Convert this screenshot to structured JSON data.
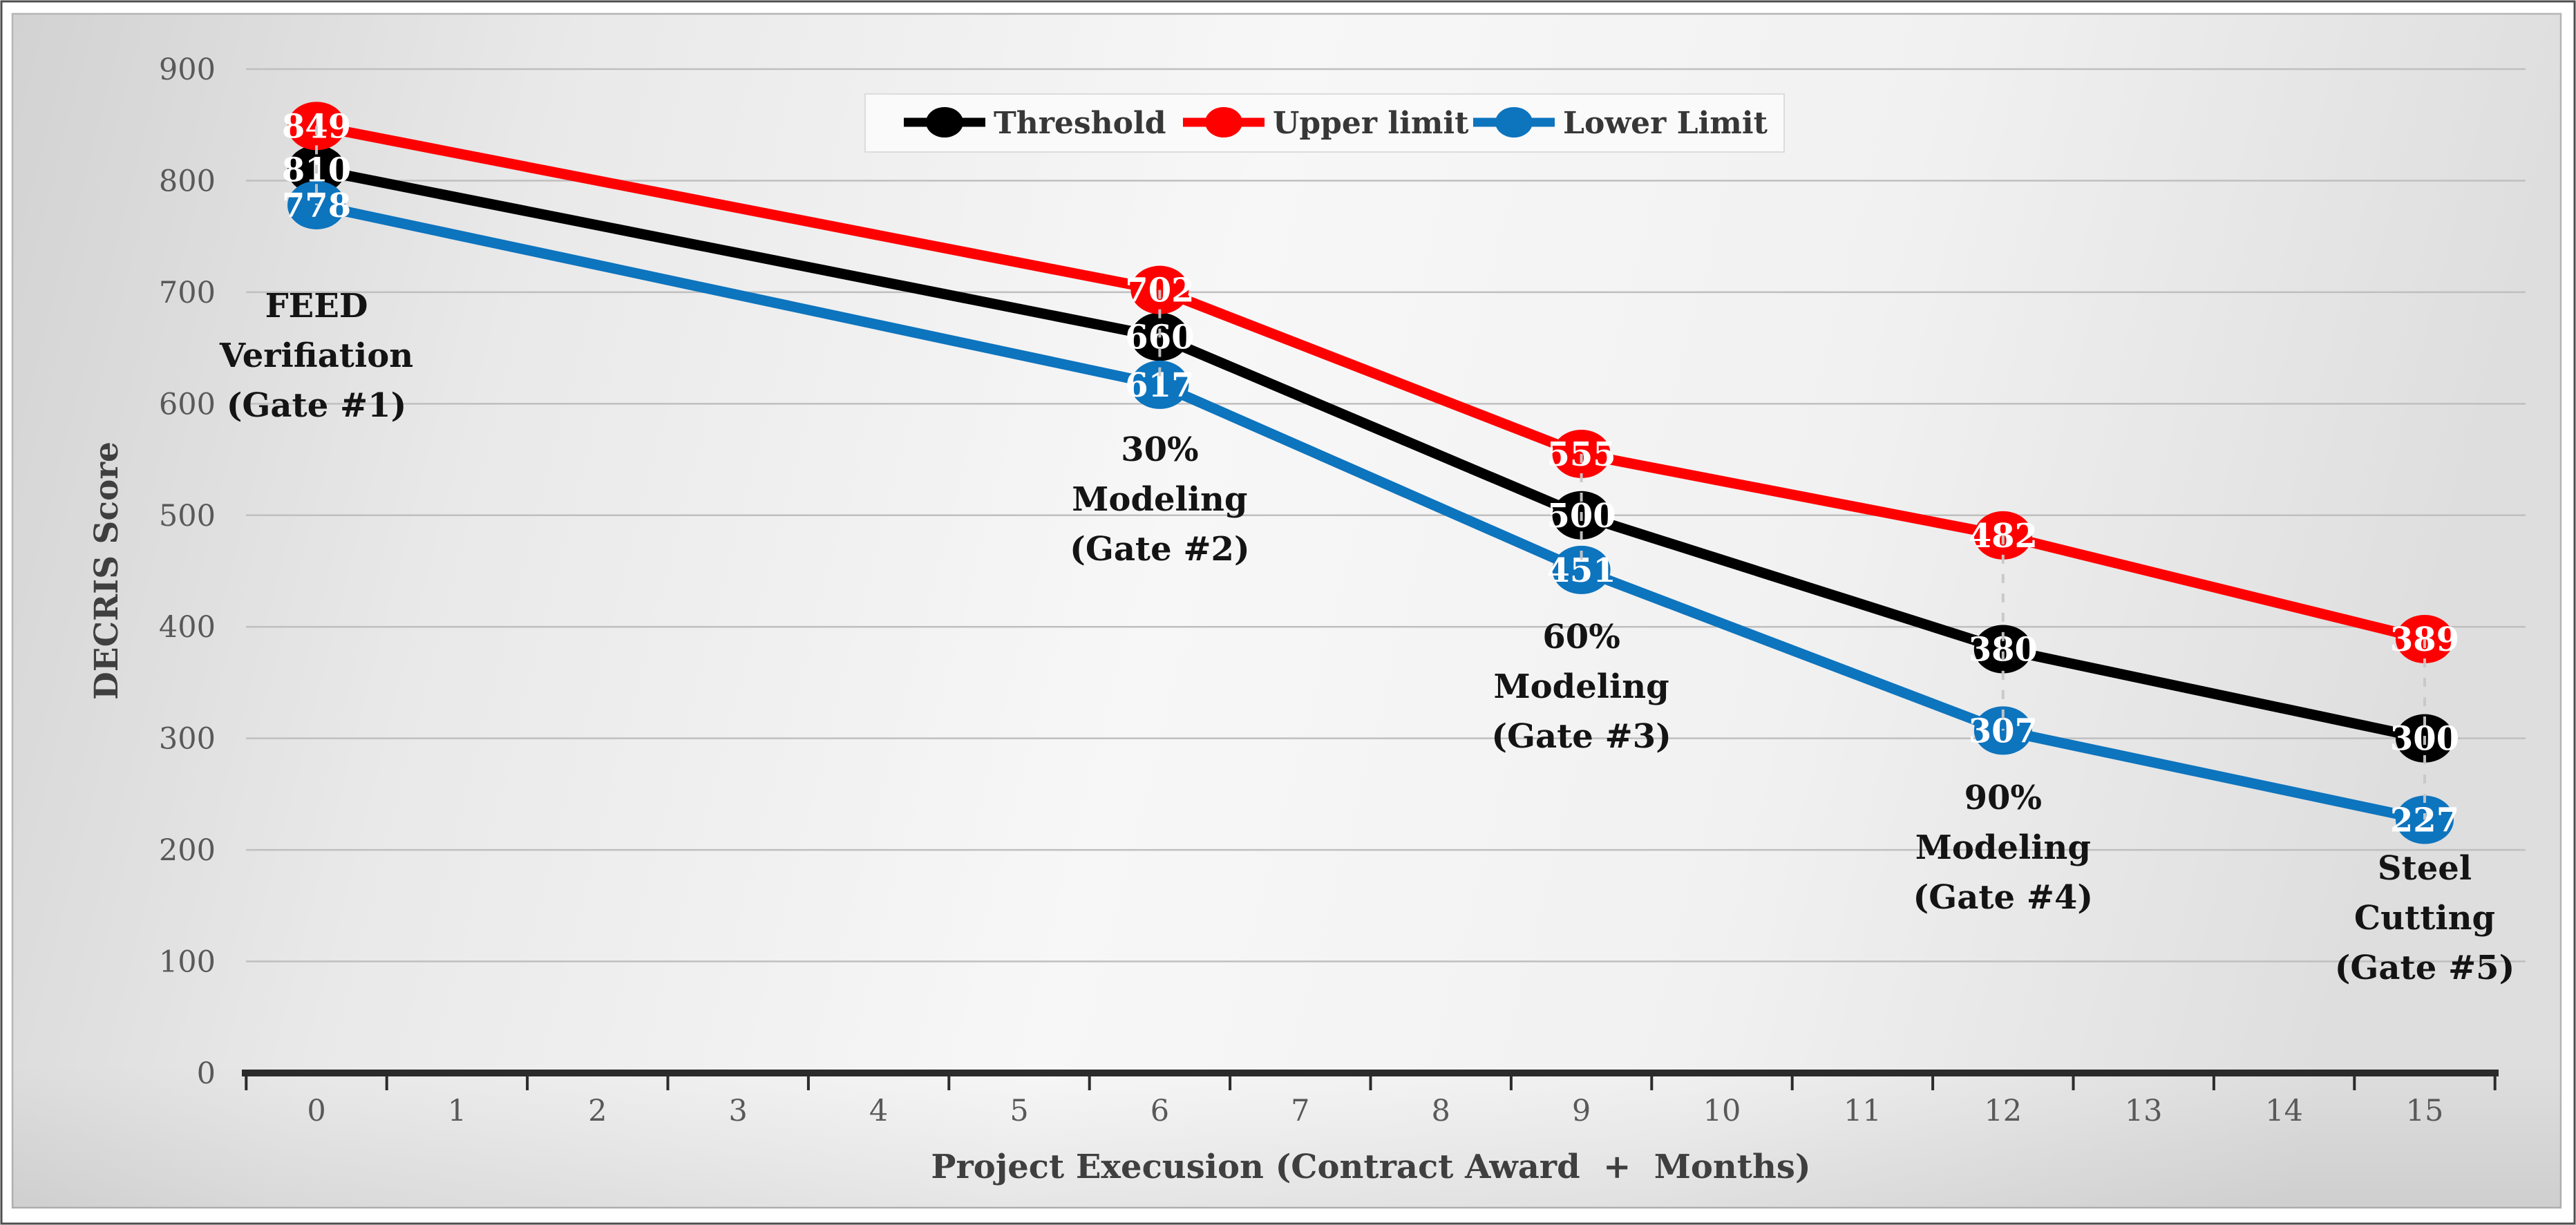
{
  "chart_data": {
    "type": "line",
    "title": "",
    "xlabel": "Project Execusion (Contract Award  +  Months)",
    "ylabel": "DECRIS Score",
    "x": [
      0,
      6,
      9,
      12,
      15
    ],
    "x_axis_ticks": [
      0,
      1,
      2,
      3,
      4,
      5,
      6,
      7,
      8,
      9,
      10,
      11,
      12,
      13,
      14,
      15
    ],
    "y_ticks": [
      0,
      100,
      200,
      300,
      400,
      500,
      600,
      700,
      800,
      900
    ],
    "ylim": [
      0,
      900
    ],
    "grid": true,
    "legend_position": "top-center",
    "marker_style": "filled-circle-with-value",
    "series": [
      {
        "name": "Threshold",
        "color": "#000000",
        "values": [
          810,
          660,
          500,
          380,
          300
        ]
      },
      {
        "name": "Upper limit",
        "color": "#ff0000",
        "values": [
          849,
          702,
          555,
          482,
          389
        ]
      },
      {
        "name": "Lower Limit",
        "color": "#0d74be",
        "values": [
          778,
          617,
          451,
          307,
          227
        ]
      }
    ],
    "point_annotations": [
      {
        "x": 0,
        "lines": [
          "FEED",
          "Verifiation",
          "(Gate #1)"
        ]
      },
      {
        "x": 6,
        "lines": [
          "30%",
          "Modeling",
          "(Gate #2)"
        ]
      },
      {
        "x": 9,
        "lines": [
          "60%",
          "Modeling",
          "(Gate #3)"
        ]
      },
      {
        "x": 12,
        "lines": [
          "90%",
          "Modeling",
          "(Gate #4)"
        ]
      },
      {
        "x": 15,
        "lines": [
          "Steel",
          "Cutting",
          "(Gate #5)"
        ]
      }
    ]
  },
  "colors": {
    "grid": "#bfbfbf",
    "axis": "#2b2b2b",
    "tick_label": "#595959",
    "axis_title": "#3f3f3f",
    "annotation": "#141414",
    "value_text": "#ffffff",
    "connector": "#c8c8c8",
    "legend_box_fill": "#fafafa",
    "legend_box_border": "#dcdcdc",
    "panel_border": "#b5b5b5",
    "page_border": "#4e4e4e",
    "panel_gradient": [
      "#d2d2d2",
      "#e9e9e9",
      "#f7f7f7",
      "#f1f1f1",
      "#dedede"
    ]
  }
}
